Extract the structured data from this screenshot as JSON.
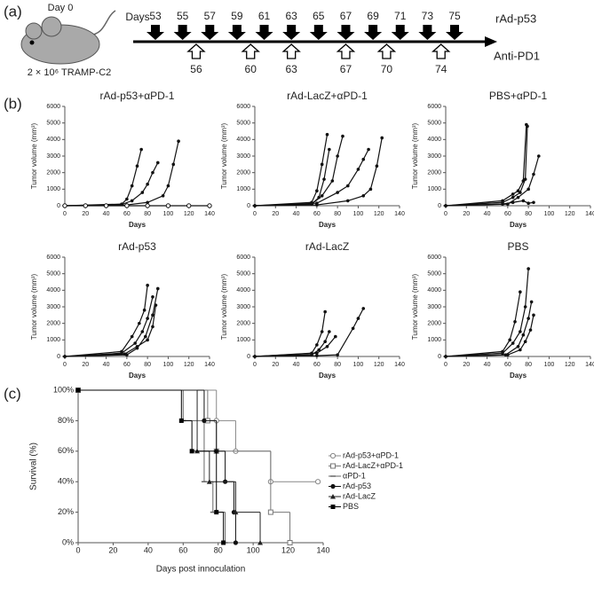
{
  "panel_labels": [
    "(a)",
    "(b)",
    "(c)"
  ],
  "schedule": {
    "day0_label": "Day 0",
    "cells_label": "2 × 10⁶ TRAMP-C2",
    "days_label": "Days",
    "drug_label": "rAd-p53",
    "drug_days": [
      53,
      55,
      57,
      59,
      61,
      63,
      65,
      67,
      69,
      71,
      73,
      75
    ],
    "antibody_label": "Anti-PD1",
    "antibody_days": [
      56,
      60,
      63,
      67,
      70,
      74
    ]
  },
  "chart_data": [
    {
      "type": "line",
      "title": "rAd-p53+αPD-1",
      "xlabel": "Days",
      "ylabel": "Tumor volume (mm³)",
      "color": "#111",
      "xlim": [
        0,
        140
      ],
      "xticks": [
        0,
        20,
        40,
        60,
        80,
        100,
        120,
        140
      ],
      "ylim": [
        0,
        6000
      ],
      "yticks": [
        0,
        1000,
        2000,
        3000,
        4000,
        5000,
        6000
      ],
      "series": [
        {
          "x": [
            0,
            55,
            60,
            65,
            70,
            74
          ],
          "values": [
            0,
            100,
            400,
            1200,
            2400,
            3400
          ]
        },
        {
          "x": [
            0,
            55,
            65,
            75,
            80,
            85,
            90
          ],
          "values": [
            0,
            80,
            300,
            800,
            1300,
            2000,
            2600
          ]
        },
        {
          "x": [
            0,
            60,
            80,
            95,
            100,
            105,
            110
          ],
          "values": [
            0,
            50,
            200,
            600,
            1200,
            2500,
            3900
          ]
        },
        {
          "x": [
            0,
            20,
            40,
            60,
            80,
            100,
            120,
            140
          ],
          "values": [
            0,
            0,
            0,
            0,
            0,
            0,
            0,
            0
          ],
          "marker": "open"
        }
      ]
    },
    {
      "type": "line",
      "title": "rAd-LacZ+αPD-1",
      "xlabel": "Days",
      "ylabel": "Tumor volume (mm³)",
      "color": "#111",
      "xlim": [
        0,
        140
      ],
      "xticks": [
        0,
        20,
        40,
        60,
        80,
        100,
        120,
        140
      ],
      "ylim": [
        0,
        6000
      ],
      "yticks": [
        0,
        1000,
        2000,
        3000,
        4000,
        5000,
        6000
      ],
      "series": [
        {
          "x": [
            0,
            55,
            60,
            65,
            70
          ],
          "values": [
            0,
            200,
            900,
            2500,
            4300
          ]
        },
        {
          "x": [
            0,
            55,
            62,
            67,
            72
          ],
          "values": [
            0,
            100,
            500,
            1600,
            3400
          ]
        },
        {
          "x": [
            0,
            55,
            65,
            75,
            80,
            85
          ],
          "values": [
            0,
            100,
            600,
            1500,
            3000,
            4200
          ]
        },
        {
          "x": [
            0,
            60,
            80,
            90,
            100,
            105,
            110
          ],
          "values": [
            0,
            150,
            800,
            1200,
            2200,
            2800,
            3400
          ]
        },
        {
          "x": [
            0,
            60,
            90,
            105,
            112,
            118,
            123
          ],
          "values": [
            0,
            50,
            300,
            600,
            1000,
            2400,
            4100
          ]
        }
      ]
    },
    {
      "type": "line",
      "title": "PBS+αPD-1",
      "xlabel": "Days",
      "ylabel": "Tumor volume (mm³)",
      "color": "#111",
      "xlim": [
        0,
        140
      ],
      "xticks": [
        0,
        20,
        40,
        60,
        80,
        100,
        120,
        140
      ],
      "ylim": [
        0,
        6000
      ],
      "yticks": [
        0,
        1000,
        2000,
        3000,
        4000,
        5000,
        6000
      ],
      "series": [
        {
          "x": [
            0,
            55,
            65,
            70,
            75,
            78
          ],
          "values": [
            0,
            300,
            700,
            900,
            1500,
            4900
          ]
        },
        {
          "x": [
            0,
            55,
            65,
            72,
            77,
            79
          ],
          "values": [
            0,
            200,
            500,
            800,
            1600,
            4800
          ]
        },
        {
          "x": [
            0,
            60,
            70,
            80,
            85,
            90
          ],
          "values": [
            0,
            100,
            500,
            1000,
            1900,
            3000
          ]
        },
        {
          "x": [
            0,
            55,
            65,
            75,
            80,
            85
          ],
          "values": [
            0,
            100,
            200,
            300,
            150,
            200
          ]
        }
      ]
    },
    {
      "type": "line",
      "title": "rAd-p53",
      "xlabel": "Days",
      "ylabel": "Tumor volume (mm³)",
      "color": "#111",
      "xlim": [
        0,
        140
      ],
      "xticks": [
        0,
        20,
        40,
        60,
        80,
        100,
        120,
        140
      ],
      "ylim": [
        0,
        6000
      ],
      "yticks": [
        0,
        1000,
        2000,
        3000,
        4000,
        5000,
        6000
      ],
      "series": [
        {
          "x": [
            0,
            55,
            65,
            72,
            77,
            80
          ],
          "values": [
            0,
            300,
            1200,
            2000,
            2800,
            4300
          ]
        },
        {
          "x": [
            0,
            55,
            68,
            75,
            80,
            85
          ],
          "values": [
            0,
            200,
            800,
            1500,
            2300,
            3600
          ]
        },
        {
          "x": [
            0,
            60,
            70,
            78,
            85,
            90
          ],
          "values": [
            0,
            100,
            500,
            1200,
            2500,
            4100
          ]
        },
        {
          "x": [
            0,
            58,
            70,
            80,
            85,
            88
          ],
          "values": [
            0,
            150,
            600,
            1000,
            1800,
            3100
          ]
        }
      ]
    },
    {
      "type": "line",
      "title": "rAd-LacZ",
      "xlabel": "Days",
      "ylabel": "Tumor volume (mm³)",
      "color": "#111",
      "xlim": [
        0,
        140
      ],
      "xticks": [
        0,
        20,
        40,
        60,
        80,
        100,
        120,
        140
      ],
      "ylim": [
        0,
        6000
      ],
      "yticks": [
        0,
        1000,
        2000,
        3000,
        4000,
        5000,
        6000
      ],
      "series": [
        {
          "x": [
            0,
            55,
            60,
            65,
            68
          ],
          "values": [
            0,
            200,
            700,
            1500,
            2700
          ]
        },
        {
          "x": [
            0,
            55,
            62,
            68,
            72
          ],
          "values": [
            0,
            100,
            400,
            900,
            1500
          ]
        },
        {
          "x": [
            0,
            60,
            70,
            78
          ],
          "values": [
            0,
            200,
            600,
            1200
          ]
        },
        {
          "x": [
            0,
            60,
            80,
            95,
            100,
            105
          ],
          "values": [
            0,
            50,
            100,
            1700,
            2300,
            2900
          ]
        }
      ]
    },
    {
      "type": "line",
      "title": "PBS",
      "xlabel": "Days",
      "ylabel": "Tumor volume (mm³)",
      "color": "#111",
      "xlim": [
        0,
        140
      ],
      "xticks": [
        0,
        20,
        40,
        60,
        80,
        100,
        120,
        140
      ],
      "ylim": [
        0,
        6000
      ],
      "yticks": [
        0,
        1000,
        2000,
        3000,
        4000,
        5000,
        6000
      ],
      "series": [
        {
          "x": [
            0,
            55,
            62,
            67,
            72
          ],
          "values": [
            0,
            300,
            1000,
            2100,
            3900
          ]
        },
        {
          "x": [
            0,
            55,
            65,
            72,
            77,
            80
          ],
          "values": [
            0,
            200,
            800,
            1500,
            3000,
            5300
          ]
        },
        {
          "x": [
            0,
            58,
            70,
            75,
            80,
            83
          ],
          "values": [
            0,
            100,
            600,
            1300,
            2300,
            3300
          ]
        },
        {
          "x": [
            0,
            60,
            72,
            77,
            82,
            85
          ],
          "values": [
            0,
            100,
            400,
            900,
            1600,
            2500
          ]
        }
      ]
    },
    {
      "type": "step",
      "xlabel": "Days post innoculation",
      "ylabel": "Survival (%)",
      "xlim": [
        0,
        140
      ],
      "xticks": [
        0,
        20,
        40,
        60,
        80,
        100,
        120,
        140
      ],
      "ylim": [
        0,
        100
      ],
      "yticks": [
        {
          "value": 0,
          "label": "0%"
        },
        {
          "value": 20,
          "label": "20%"
        },
        {
          "value": 40,
          "label": "40%"
        },
        {
          "value": 60,
          "label": "60%"
        },
        {
          "value": 80,
          "label": "80%"
        },
        {
          "value": 100,
          "label": "100%"
        }
      ],
      "series": [
        {
          "name": "rAd-p53+αPD-1",
          "color": "#888",
          "marker": "circle-open",
          "x": [
            0,
            79,
            90,
            110,
            137
          ],
          "values": [
            100,
            80,
            60,
            40,
            40
          ]
        },
        {
          "name": "rAd-LacZ+αPD-1",
          "color": "#777",
          "marker": "square-open",
          "x": [
            0,
            74,
            79,
            110,
            121
          ],
          "values": [
            100,
            80,
            60,
            20,
            0
          ]
        },
        {
          "name": "αPD-1",
          "color": "#666",
          "marker": "dash",
          "x": [
            0,
            60,
            72,
            77,
            84
          ],
          "values": [
            100,
            80,
            40,
            20,
            0
          ]
        },
        {
          "name": "rAd-p53",
          "color": "#111",
          "marker": "circle",
          "x": [
            0,
            72,
            79,
            84,
            89,
            90
          ],
          "values": [
            100,
            80,
            60,
            40,
            20,
            0
          ]
        },
        {
          "name": "rAd-LacZ",
          "color": "#222",
          "marker": "triangle",
          "x": [
            0,
            68,
            75,
            90,
            104
          ],
          "values": [
            100,
            60,
            40,
            20,
            0
          ]
        },
        {
          "name": "PBS",
          "color": "#000",
          "marker": "square",
          "x": [
            0,
            59,
            65,
            79,
            83
          ],
          "values": [
            100,
            80,
            60,
            20,
            0
          ]
        }
      ]
    }
  ]
}
